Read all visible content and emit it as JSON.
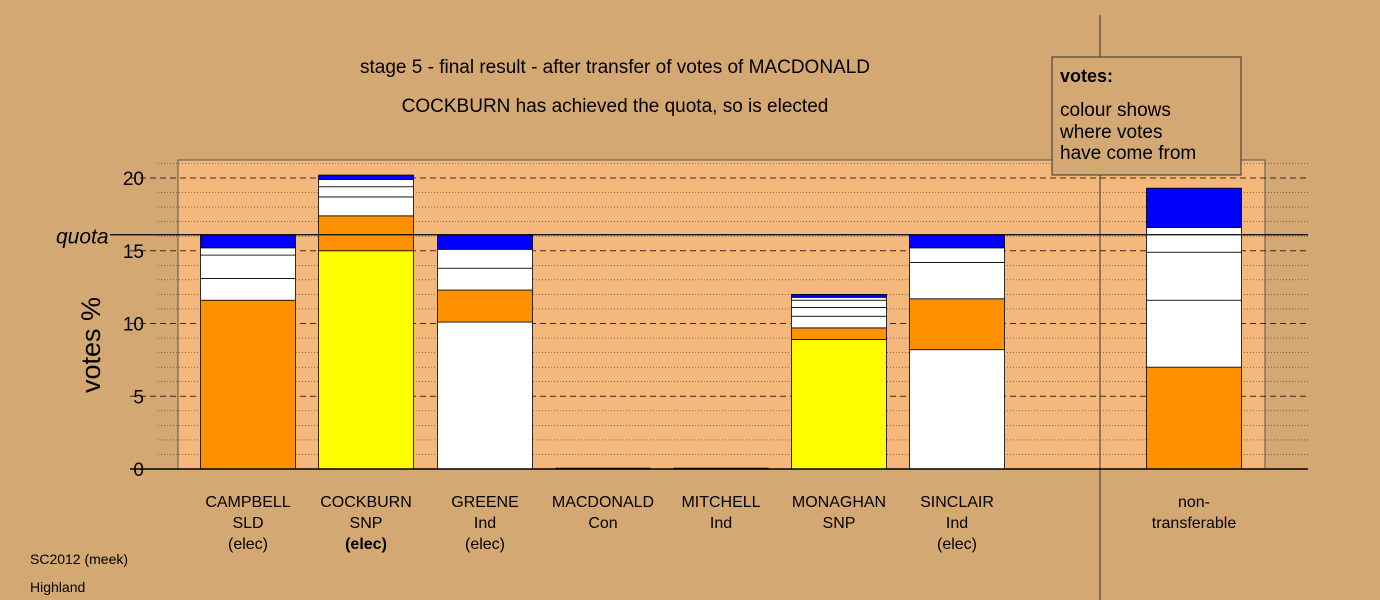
{
  "chart_data": {
    "type": "bar",
    "stacked": true,
    "title_line1": "stage 5 - final result - after transfer of votes of MACDONALD",
    "title_line2": "COCKBURN has achieved the quota, so is elected",
    "ylabel": "votes %",
    "ylim": [
      0,
      21.3
    ],
    "yticks": [
      0,
      5,
      10,
      15,
      20
    ],
    "quota": 16.1,
    "quota_label": "quota",
    "grid": true,
    "colors": {
      "orange": "#ff9000",
      "yellow": "#ffff00",
      "white": "#ffffff",
      "blue": "#0000ff",
      "panel": "#f4b87c",
      "background": "#d4a872"
    },
    "categories": [
      {
        "lines": [
          "CAMPBELL",
          "SLD",
          "(elec)"
        ],
        "bold_line": -1,
        "segments": [
          {
            "color": "orange",
            "value": 11.6
          },
          {
            "color": "white",
            "value": 1.5
          },
          {
            "color": "white",
            "value": 1.6
          },
          {
            "color": "white",
            "value": 0.5
          },
          {
            "color": "blue",
            "value": 0.9
          }
        ]
      },
      {
        "lines": [
          "COCKBURN",
          "SNP",
          "(elec)"
        ],
        "bold_line": 2,
        "segments": [
          {
            "color": "yellow",
            "value": 15.0
          },
          {
            "color": "orange",
            "value": 2.4
          },
          {
            "color": "white",
            "value": 1.3
          },
          {
            "color": "white",
            "value": 0.7
          },
          {
            "color": "white",
            "value": 0.5
          },
          {
            "color": "blue",
            "value": 0.3
          }
        ]
      },
      {
        "lines": [
          "GREENE",
          "Ind",
          "(elec)"
        ],
        "bold_line": -1,
        "segments": [
          {
            "color": "white",
            "value": 10.1
          },
          {
            "color": "orange",
            "value": 2.2
          },
          {
            "color": "white",
            "value": 1.5
          },
          {
            "color": "white",
            "value": 1.3
          },
          {
            "color": "blue",
            "value": 1.0
          }
        ]
      },
      {
        "lines": [
          "MACDONALD",
          "Con"
        ],
        "bold_line": -1,
        "segments": []
      },
      {
        "lines": [
          "MITCHELL",
          "Ind"
        ],
        "bold_line": -1,
        "segments": []
      },
      {
        "lines": [
          "MONAGHAN",
          "SNP"
        ],
        "bold_line": -1,
        "segments": [
          {
            "color": "yellow",
            "value": 8.9
          },
          {
            "color": "orange",
            "value": 0.8
          },
          {
            "color": "white",
            "value": 0.8
          },
          {
            "color": "white",
            "value": 0.6
          },
          {
            "color": "white",
            "value": 0.5
          },
          {
            "color": "white",
            "value": 0.2
          },
          {
            "color": "blue",
            "value": 0.2
          }
        ]
      },
      {
        "lines": [
          "SINCLAIR",
          "Ind",
          "(elec)"
        ],
        "bold_line": -1,
        "segments": [
          {
            "color": "white",
            "value": 8.2
          },
          {
            "color": "orange",
            "value": 3.5
          },
          {
            "color": "white",
            "value": 2.5
          },
          {
            "color": "white",
            "value": 1.0
          },
          {
            "color": "blue",
            "value": 0.9
          }
        ]
      }
    ],
    "nontransferable": {
      "lines": [
        "non-",
        "transferable"
      ],
      "segments": [
        {
          "color": "orange",
          "value": 7.0
        },
        {
          "color": "white",
          "value": 4.6
        },
        {
          "color": "white",
          "value": 3.3
        },
        {
          "color": "white",
          "value": 1.7
        },
        {
          "color": "blue",
          "value": 2.7
        }
      ]
    },
    "legend": {
      "title": "votes:",
      "lines": [
        "colour shows",
        "where votes",
        "have come from"
      ],
      "placement": "top-right"
    }
  },
  "footer": {
    "line1": "SC2012 (meek)",
    "line2": "Highland"
  }
}
